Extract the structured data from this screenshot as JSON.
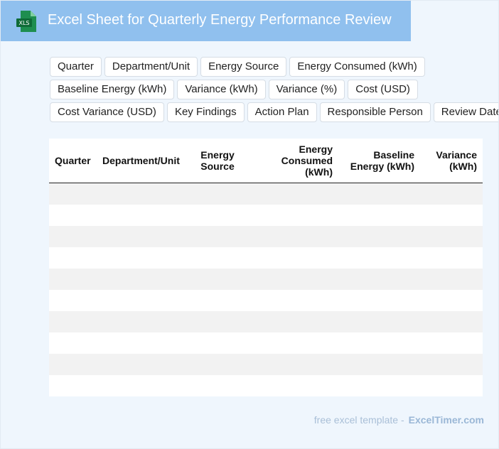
{
  "header": {
    "icon": "XLS",
    "title": "Excel Sheet for Quarterly Energy Performance Review"
  },
  "tags": [
    [
      "Quarter",
      "Department/Unit",
      "Energy Source",
      "Energy Consumed (kWh)"
    ],
    [
      "Baseline Energy (kWh)",
      "Variance (kWh)",
      "Variance (%)",
      "Cost (USD)"
    ],
    [
      "Cost Variance (USD)",
      "Key Findings",
      "Action Plan",
      "Responsible Person",
      "Review Date"
    ]
  ],
  "table": {
    "columns": [
      "Quarter",
      "Department/Unit",
      "Energy Source",
      "Energy Consumed (kWh)",
      "Baseline Energy (kWh)",
      "Variance (kWh)"
    ]
  },
  "footer": {
    "text": "free excel template -",
    "brand": "ExcelTimer.com"
  }
}
